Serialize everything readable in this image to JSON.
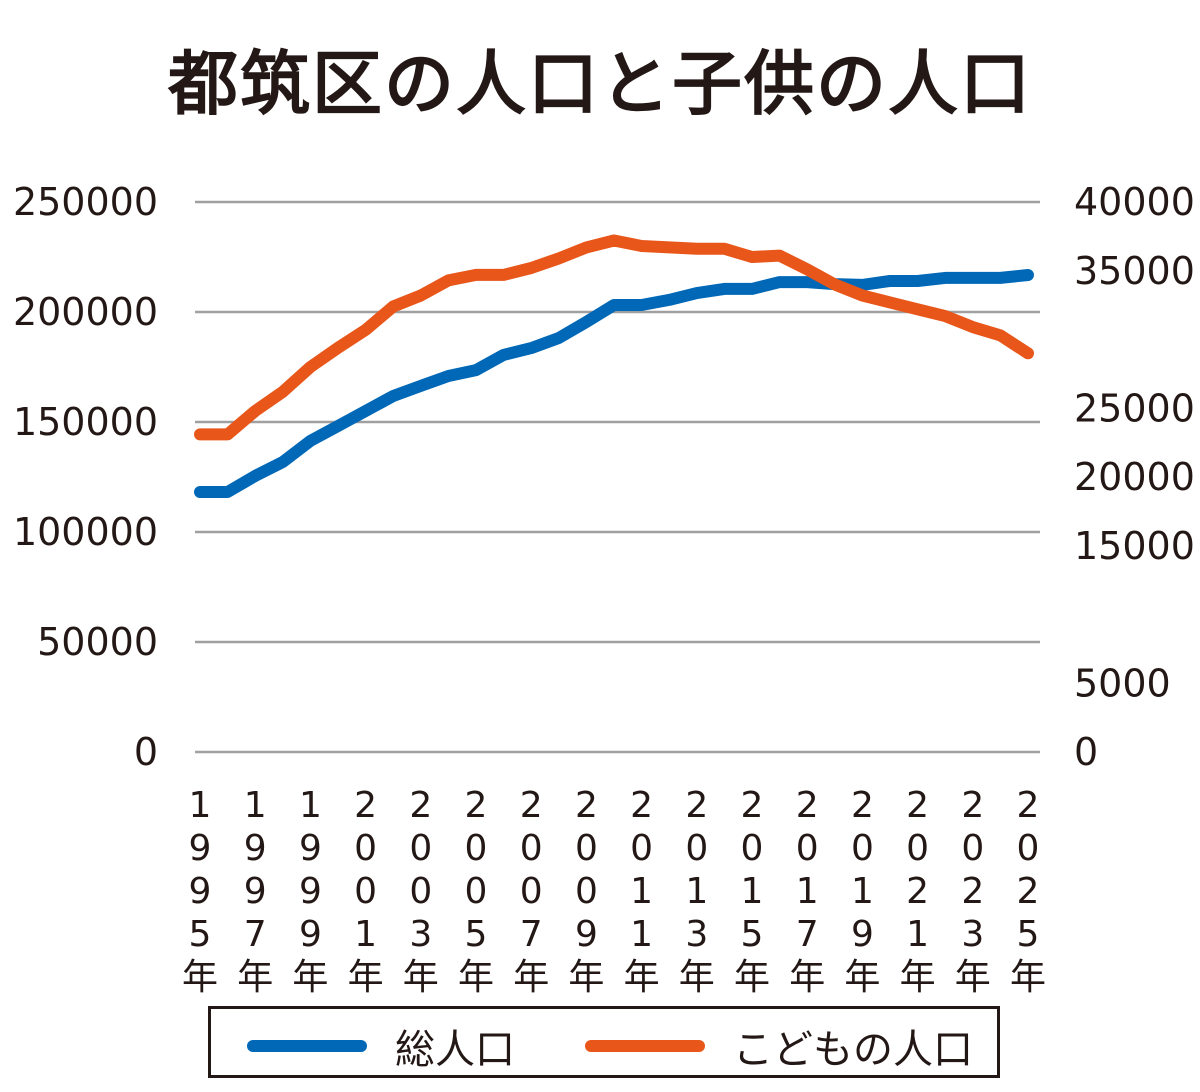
{
  "chart_data": {
    "type": "line",
    "title": "都筑区の人口と子供の人口",
    "x": [
      1995,
      1996,
      1997,
      1998,
      1999,
      2000,
      2001,
      2002,
      2003,
      2004,
      2005,
      2006,
      2007,
      2008,
      2009,
      2010,
      2011,
      2012,
      2013,
      2014,
      2015,
      2016,
      2017,
      2018,
      2019,
      2020,
      2021,
      2022,
      2023,
      2024,
      2025
    ],
    "x_tick_labels": [
      "1995年",
      "1997年",
      "1999年",
      "2001年",
      "2003年",
      "2005年",
      "2007年",
      "2009年",
      "2011年",
      "2013年",
      "2015年",
      "2017年",
      "2019年",
      "2021年",
      "2023年",
      "2025年"
    ],
    "y_left": {
      "ylim": [
        0,
        250000
      ],
      "ticks": [
        "0",
        "50000",
        "100000",
        "150000",
        "200000",
        "250000"
      ]
    },
    "y_right": {
      "ylim": [
        0,
        40000
      ],
      "ticks": [
        "0",
        "5000",
        "15000",
        "20000",
        "25000",
        "35000",
        "40000"
      ],
      "tick_values": [
        0,
        5000,
        15000,
        20000,
        25000,
        35000,
        40000
      ]
    },
    "grid": true,
    "legend_placement": "bottom",
    "series": [
      {
        "name": "総人口",
        "axis": "left",
        "color": "#0068b7",
        "values": [
          118200,
          118200,
          125500,
          131800,
          141400,
          148200,
          155000,
          161800,
          166400,
          170900,
          173600,
          180500,
          183600,
          188200,
          195500,
          203200,
          203200,
          205500,
          208600,
          210500,
          210500,
          213600,
          213600,
          212700,
          212300,
          214100,
          214100,
          215500,
          215500,
          215500,
          216800
        ]
      },
      {
        "name": "こどもの人口",
        "axis": "right",
        "color": "#e8561a",
        "values": [
          23100,
          23100,
          24800,
          26200,
          28000,
          29400,
          30700,
          32400,
          33200,
          34300,
          34700,
          34700,
          35200,
          35900,
          36700,
          37200,
          36800,
          36700,
          36600,
          36600,
          36000,
          36100,
          35100,
          34000,
          33200,
          32700,
          32200,
          31700,
          30900,
          30300,
          29000
        ]
      }
    ]
  }
}
